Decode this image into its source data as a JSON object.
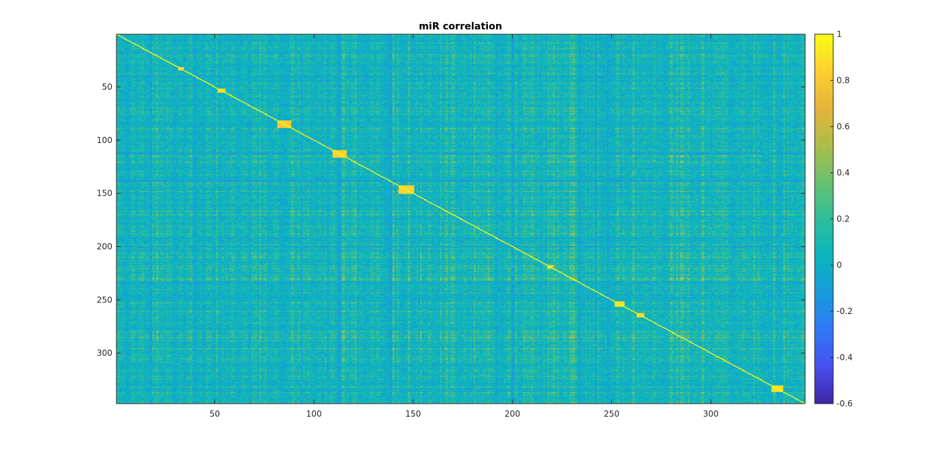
{
  "chart_data": {
    "type": "heatmap",
    "title": "miR correlation",
    "xlabel": "",
    "ylabel": "",
    "matrix_size": 347,
    "xlim": [
      0.5,
      347.5
    ],
    "ylim": [
      0.5,
      347.5
    ],
    "y_direction": "reverse",
    "x_ticks": [
      50,
      100,
      150,
      200,
      250,
      300
    ],
    "y_ticks": [
      50,
      100,
      150,
      200,
      250,
      300
    ],
    "colormap": "parula",
    "colorbar": {
      "limits": [
        -0.6,
        1
      ],
      "ticks": [
        1,
        0.8,
        0.6,
        0.4,
        0.2,
        0,
        -0.2,
        -0.4,
        -0.6
      ],
      "tick_labels": [
        "1",
        "0.8",
        "0.6",
        "0.4",
        "0.2",
        "0",
        "-0.2",
        "-0.4",
        "-0.6"
      ]
    },
    "diagonal_value": 1,
    "typical_offdiagonal_range": [
      -0.3,
      0.4
    ],
    "high_correlation_blocks": [
      {
        "start": 32,
        "end": 34,
        "value": 0.85
      },
      {
        "start": 52,
        "end": 55,
        "value": 0.85
      },
      {
        "start": 82,
        "end": 88,
        "value": 0.8
      },
      {
        "start": 110,
        "end": 116,
        "value": 0.85
      },
      {
        "start": 143,
        "end": 150,
        "value": 0.85
      },
      {
        "start": 218,
        "end": 220,
        "value": 0.9
      },
      {
        "start": 252,
        "end": 256,
        "value": 0.9
      },
      {
        "start": 263,
        "end": 266,
        "value": 0.85
      },
      {
        "start": 331,
        "end": 336,
        "value": 0.9
      }
    ]
  }
}
